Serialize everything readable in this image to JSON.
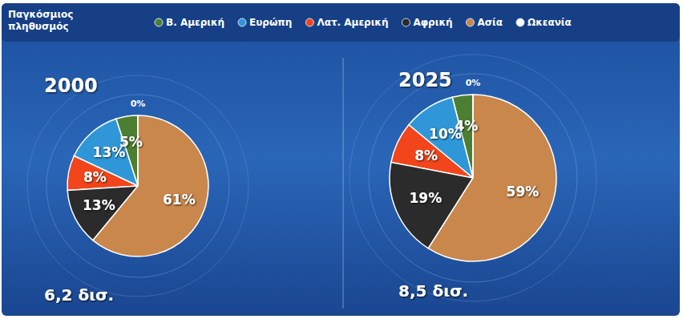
{
  "chart_data": {
    "type": "pie",
    "title": "Παγκόσμιος πληθυσμός",
    "categories": [
      "Β. Αμερική",
      "Ευρώπη",
      "Λατ. Αμερική",
      "Αφρική",
      "Ασία",
      "Ωκεανία"
    ],
    "colors": [
      "#4d7f33",
      "#2f97d8",
      "#f2451c",
      "#2b2b2b",
      "#c9874c",
      "#ffffff"
    ],
    "series": [
      {
        "name": "2000",
        "values": [
          5,
          13,
          8,
          13,
          61,
          0
        ],
        "value_labels": [
          "5%",
          "13%",
          "8%",
          "13%",
          "61%",
          "0%"
        ]
      },
      {
        "name": "2025",
        "values": [
          4,
          10,
          8,
          19,
          59,
          0
        ],
        "value_labels": [
          "4%",
          "10%",
          "8%",
          "19%",
          "59%",
          "0%"
        ]
      }
    ],
    "annotations": [
      "6,2 δισ.",
      "8,5 δισ."
    ],
    "data_labels": true
  }
}
